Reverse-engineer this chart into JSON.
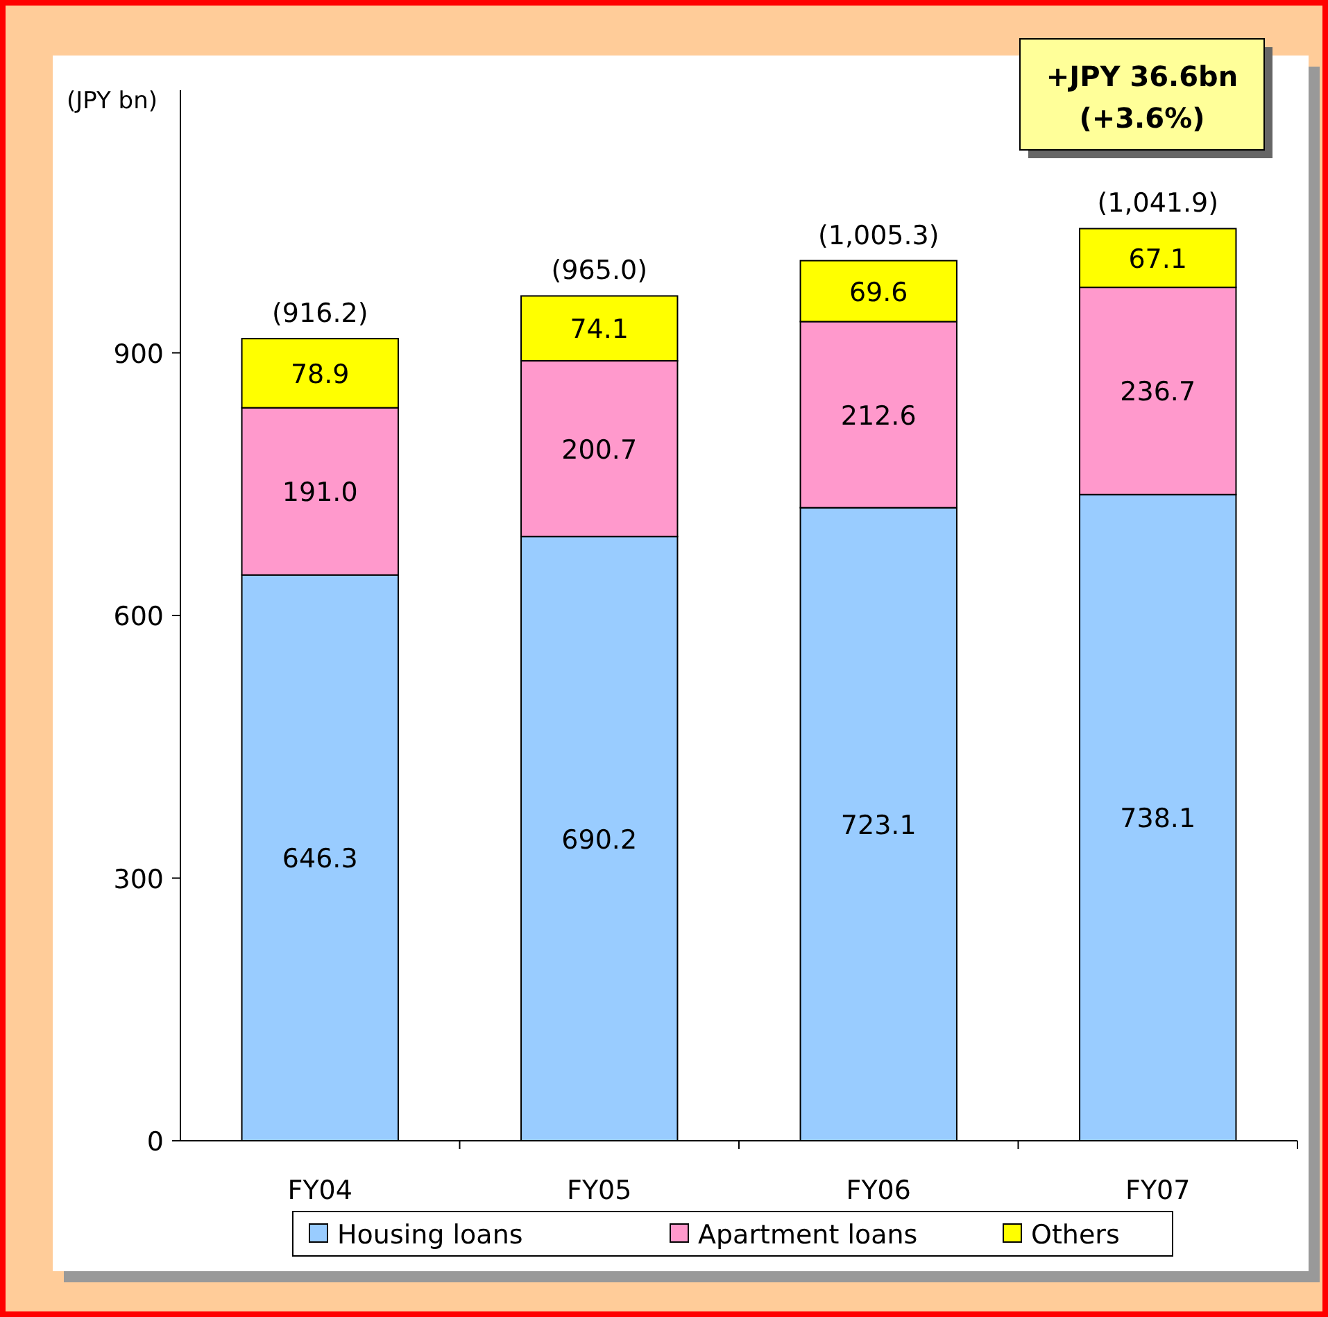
{
  "chart_data": {
    "type": "bar",
    "stacked": true,
    "ylabel": "(JPY bn)",
    "categories": [
      "FY04",
      "FY05",
      "FY06",
      "FY07"
    ],
    "series": [
      {
        "name": "Housing loans",
        "color": "#99ccff",
        "values": [
          646.3,
          690.2,
          723.1,
          738.1
        ],
        "value_labels": [
          "646.3",
          "690.2",
          "723.1",
          "738.1"
        ]
      },
      {
        "name": "Apartment loans",
        "color": "#ff99cc",
        "values": [
          191.0,
          200.7,
          212.6,
          236.7
        ],
        "value_labels": [
          "191.0",
          "200.7",
          "212.6",
          "236.7"
        ]
      },
      {
        "name": "Others",
        "color": "#ffff00",
        "values": [
          78.9,
          74.1,
          69.6,
          67.1
        ],
        "value_labels": [
          "78.9",
          "74.1",
          "69.6",
          "67.1"
        ]
      }
    ],
    "totals": [
      "(916.2)",
      "(965.0)",
      "(1,005.3)",
      "(1,041.9)"
    ],
    "ylim": [
      0,
      1200
    ],
    "yticks": [
      0,
      300,
      600,
      900
    ],
    "legend": "bottom",
    "annotations": [
      "+JPY 36.6bn\n(+3.6%)"
    ]
  }
}
